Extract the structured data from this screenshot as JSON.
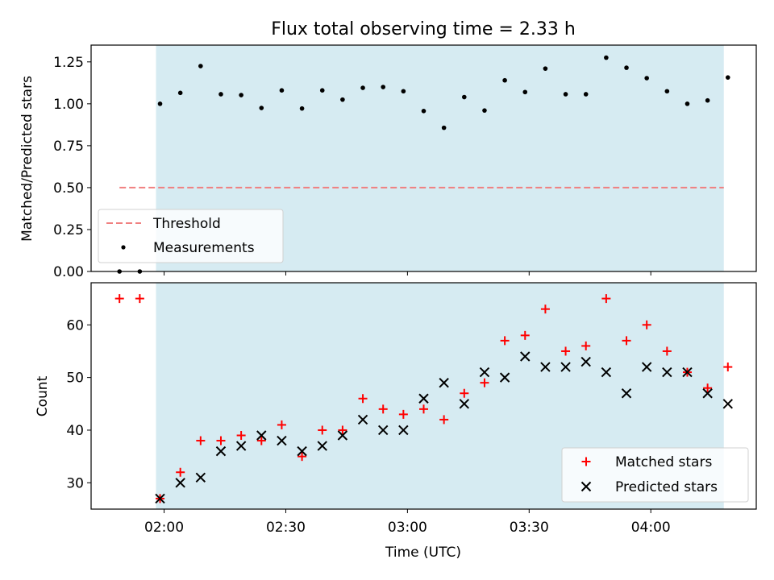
{
  "figure": {
    "title": "Flux total observing time = 2.33 h",
    "xlabel": "Time (UTC)",
    "x_ticks": [
      "02:00",
      "02:30",
      "03:00",
      "03:30",
      "04:00"
    ]
  },
  "colors": {
    "shade": "#add8e6",
    "threshold": "#f08080",
    "matched": "#ff0000",
    "predicted": "#000000",
    "measurement": "#000000"
  },
  "chart_data": [
    {
      "type": "scatter",
      "panel": "top",
      "ylabel": "Matched/Predicted stars",
      "ylim": [
        0,
        1.35
      ],
      "yticks": [
        "0.00",
        "0.25",
        "0.50",
        "0.75",
        "1.00",
        "1.25"
      ],
      "xlim": [
        "01:42",
        "04:26"
      ],
      "shaded_interval": [
        "01:58",
        "04:18"
      ],
      "threshold": {
        "y": 0.5,
        "x_range": [
          "01:49",
          "04:18"
        ]
      },
      "legend_position": "lower-left",
      "legend": [
        "Threshold",
        "Measurements"
      ],
      "series": [
        {
          "name": "Measurements",
          "x": [
            "01:49",
            "01:54",
            "01:59",
            "02:04",
            "02:09",
            "02:14",
            "02:19",
            "02:24",
            "02:29",
            "02:34",
            "02:39",
            "02:44",
            "02:49",
            "02:54",
            "02:59",
            "03:04",
            "03:09",
            "03:14",
            "03:19",
            "03:24",
            "03:29",
            "03:34",
            "03:39",
            "03:44",
            "03:49",
            "03:54",
            "03:59",
            "04:04",
            "04:09",
            "04:14",
            "04:19"
          ],
          "y": [
            0,
            0,
            1.0,
            1.065,
            1.225,
            1.057,
            1.052,
            0.975,
            1.08,
            0.972,
            1.08,
            1.025,
            1.095,
            1.1,
            1.075,
            0.957,
            0.857,
            1.04,
            0.96,
            1.14,
            1.07,
            1.21,
            1.057,
            1.057,
            1.275,
            1.215,
            1.153,
            1.075,
            1.0,
            1.02,
            1.157
          ]
        }
      ]
    },
    {
      "type": "scatter",
      "panel": "bottom",
      "ylabel": "Count",
      "ylim": [
        25,
        68
      ],
      "yticks": [
        "30",
        "40",
        "50",
        "60"
      ],
      "xlim": [
        "01:42",
        "04:26"
      ],
      "shaded_interval": [
        "01:58",
        "04:18"
      ],
      "legend_position": "lower-right",
      "legend": [
        "Matched stars",
        "Predicted stars"
      ],
      "series": [
        {
          "name": "Matched stars",
          "marker": "+",
          "x": [
            "01:49",
            "01:54",
            "01:59",
            "02:04",
            "02:09",
            "02:14",
            "02:19",
            "02:24",
            "02:29",
            "02:34",
            "02:39",
            "02:44",
            "02:49",
            "02:54",
            "02:59",
            "03:04",
            "03:09",
            "03:14",
            "03:19",
            "03:24",
            "03:29",
            "03:34",
            "03:39",
            "03:44",
            "03:49",
            "03:54",
            "03:59",
            "04:04",
            "04:09",
            "04:14",
            "04:19"
          ],
          "y": [
            65,
            65,
            27,
            32,
            38,
            38,
            39,
            38,
            41,
            35,
            40,
            40,
            46,
            44,
            43,
            44,
            42,
            47,
            49,
            57,
            58,
            63,
            55,
            56,
            65,
            57,
            60,
            55,
            51,
            48,
            52
          ]
        },
        {
          "name": "Predicted stars",
          "marker": "x",
          "x": [
            "01:59",
            "02:04",
            "02:09",
            "02:14",
            "02:19",
            "02:24",
            "02:29",
            "02:34",
            "02:39",
            "02:44",
            "02:49",
            "02:54",
            "02:59",
            "03:04",
            "03:09",
            "03:14",
            "03:19",
            "03:24",
            "03:29",
            "03:34",
            "03:39",
            "03:44",
            "03:49",
            "03:54",
            "03:59",
            "04:04",
            "04:09",
            "04:14",
            "04:19"
          ],
          "y": [
            27,
            30,
            31,
            36,
            37,
            39,
            38,
            36,
            37,
            39,
            42,
            40,
            40,
            46,
            49,
            45,
            51,
            50,
            54,
            52,
            52,
            53,
            51,
            47,
            52,
            51,
            51,
            47,
            45
          ]
        }
      ]
    }
  ]
}
